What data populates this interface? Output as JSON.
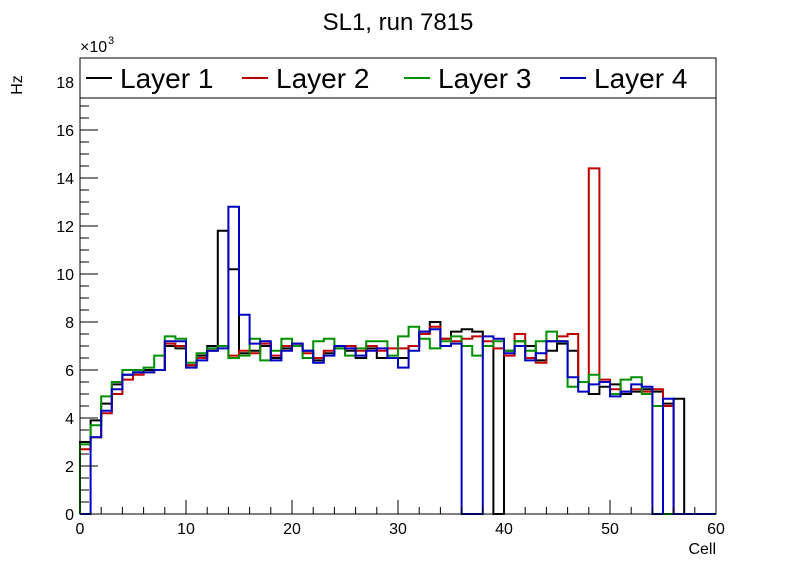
{
  "chart_data": {
    "type": "step-histogram",
    "title": "SL1, run 7815",
    "xlabel": "Cell",
    "ylabel": "Hz",
    "exponent_label": "×10",
    "exponent_power": "3",
    "xlim": [
      0,
      60
    ],
    "ylim": [
      0,
      19
    ],
    "x_ticks": [
      0,
      10,
      20,
      30,
      40,
      50,
      60
    ],
    "y_ticks": [
      0,
      2,
      4,
      6,
      8,
      10,
      12,
      14,
      16,
      18
    ],
    "bin_width": 1,
    "legend_position": "top",
    "series": [
      {
        "name": "Layer 1",
        "color": "#000000",
        "values": [
          3.0,
          3.9,
          4.6,
          5.4,
          5.8,
          5.9,
          6.0,
          6.0,
          7.0,
          6.9,
          6.2,
          6.6,
          7.0,
          11.8,
          10.2,
          6.7,
          6.8,
          7.0,
          6.5,
          6.9,
          7.1,
          6.8,
          6.4,
          6.7,
          6.9,
          6.8,
          6.5,
          6.9,
          6.5,
          6.5,
          6.5,
          7.0,
          7.6,
          8.0,
          7.3,
          7.6,
          7.7,
          7.6,
          7.0,
          0.0,
          6.8,
          7.2,
          7.0,
          6.4,
          6.8,
          7.1,
          6.8,
          5.5,
          5.0,
          5.3,
          5.4,
          5.0,
          5.1,
          5.2,
          5.1,
          4.6,
          4.8,
          0.0,
          0.0,
          0.0
        ]
      },
      {
        "name": "Layer 2",
        "color": "#c00000",
        "values": [
          2.7,
          3.2,
          4.2,
          5.0,
          5.6,
          5.8,
          5.9,
          6.0,
          7.1,
          7.0,
          6.2,
          6.5,
          6.8,
          7.0,
          6.6,
          6.8,
          6.7,
          7.1,
          6.6,
          7.0,
          7.1,
          6.7,
          6.5,
          6.8,
          7.0,
          7.0,
          6.8,
          7.0,
          6.8,
          6.9,
          6.9,
          7.0,
          7.5,
          7.8,
          7.3,
          7.2,
          7.3,
          7.4,
          7.2,
          6.9,
          6.6,
          7.5,
          6.5,
          6.3,
          7.2,
          7.4,
          7.5,
          5.5,
          14.4,
          5.6,
          5.2,
          5.1,
          5.2,
          5.1,
          5.2,
          4.5,
          0.0,
          0.0,
          0.0,
          0.0
        ]
      },
      {
        "name": "Layer 3",
        "color": "#009000",
        "values": [
          2.9,
          3.7,
          4.9,
          5.5,
          6.0,
          6.0,
          6.1,
          6.6,
          7.4,
          7.3,
          6.3,
          6.7,
          6.9,
          7.0,
          6.5,
          6.6,
          7.3,
          6.4,
          6.8,
          7.3,
          7.0,
          6.5,
          7.2,
          7.3,
          6.9,
          6.6,
          6.9,
          7.2,
          7.2,
          6.6,
          7.4,
          7.8,
          7.3,
          6.9,
          7.2,
          7.4,
          7.0,
          6.6,
          7.0,
          7.2,
          6.8,
          7.2,
          6.8,
          7.2,
          7.6,
          7.2,
          5.3,
          5.5,
          5.8,
          5.5,
          5.0,
          5.6,
          5.7,
          5.0,
          4.5,
          0.0,
          0.0,
          0.0,
          0.0,
          0.0
        ]
      },
      {
        "name": "Layer 4",
        "color": "#0000c0",
        "values": [
          0.0,
          3.2,
          4.3,
          5.2,
          5.8,
          5.9,
          5.9,
          6.0,
          7.2,
          7.2,
          6.1,
          6.4,
          6.8,
          6.9,
          12.8,
          8.3,
          7.1,
          7.2,
          6.4,
          6.8,
          7.1,
          6.8,
          6.3,
          6.6,
          7.0,
          6.9,
          6.6,
          6.8,
          6.9,
          6.5,
          6.1,
          6.8,
          7.6,
          7.7,
          7.0,
          7.1,
          0.0,
          0.0,
          7.4,
          7.3,
          6.7,
          7.0,
          6.4,
          6.7,
          7.2,
          7.2,
          5.7,
          5.1,
          5.4,
          5.5,
          4.9,
          5.1,
          5.4,
          5.3,
          0.0,
          4.8,
          0.0,
          0.0,
          0.0,
          0.0
        ]
      }
    ]
  }
}
